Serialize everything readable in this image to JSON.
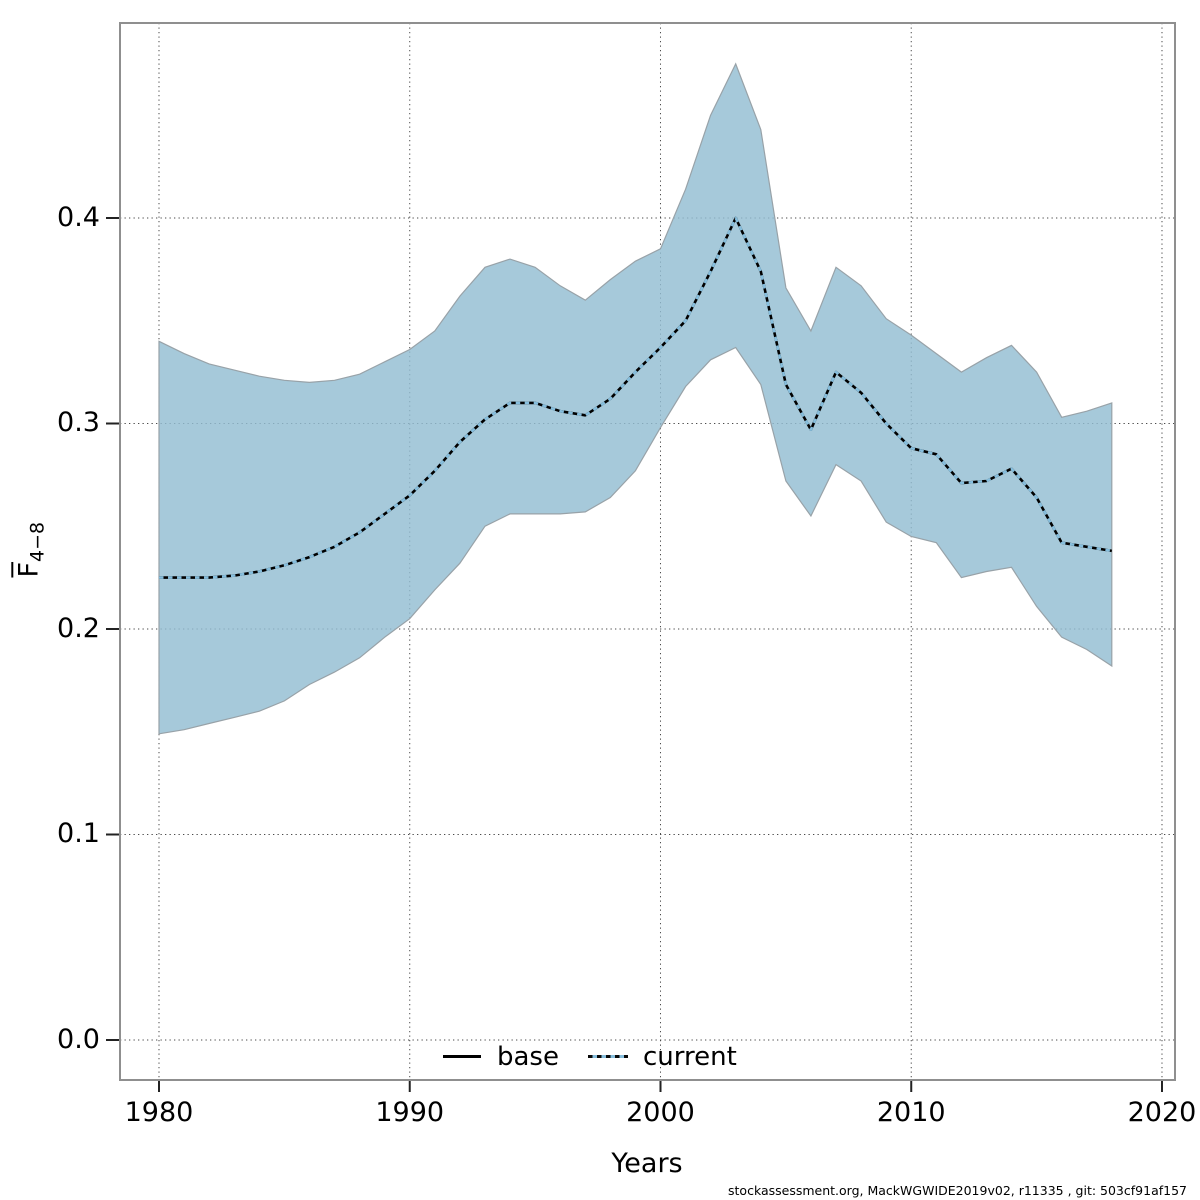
{
  "page": {
    "background": "#ffffff"
  },
  "footer": {
    "text": "stockassessment.org, MackWGWIDE2019v02, r11335 , git: 503cf91af157"
  },
  "chart_data": {
    "type": "line",
    "title": "",
    "xlabel": "Years",
    "ylabel": {
      "letter": "F",
      "subscript": "4−8",
      "overline": true
    },
    "x_ticks": [
      "1980",
      "1990",
      "2000",
      "2010",
      "2020"
    ],
    "y_ticks": [
      "0.0",
      "0.1",
      "0.2",
      "0.3",
      "0.4"
    ],
    "xlim": [
      1978.445,
      2020.519
    ],
    "ylim": [
      -0.01947,
      0.49489
    ],
    "grid": "dotted",
    "legend_position": "bottom-center-inside",
    "x": [
      1980,
      1981,
      1982,
      1983,
      1984,
      1985,
      1986,
      1987,
      1988,
      1989,
      1990,
      1991,
      1992,
      1993,
      1994,
      1995,
      1996,
      1997,
      1998,
      1999,
      2000,
      2001,
      2002,
      2003,
      2004,
      2005,
      2006,
      2007,
      2008,
      2009,
      2010,
      2011,
      2012,
      2013,
      2014,
      2015,
      2016,
      2017,
      2018
    ],
    "series": [
      {
        "name": "base",
        "color": "#000000",
        "line_style": "solid",
        "values": [
          0.225,
          0.225,
          0.225,
          0.226,
          0.228,
          0.231,
          0.235,
          0.24,
          0.247,
          0.256,
          0.265,
          0.277,
          0.291,
          0.302,
          0.31,
          0.31,
          0.306,
          0.304,
          0.312,
          0.325,
          0.337,
          0.35,
          0.374,
          0.4,
          0.374,
          0.319,
          0.297,
          0.325,
          0.315,
          0.3,
          0.288,
          0.285,
          0.271,
          0.272,
          0.278,
          0.264,
          0.242,
          0.24,
          0.238
        ]
      },
      {
        "name": "current",
        "color": "#86bedd",
        "line_style": "dotted",
        "values": [
          0.225,
          0.225,
          0.225,
          0.226,
          0.228,
          0.231,
          0.235,
          0.24,
          0.247,
          0.256,
          0.265,
          0.277,
          0.291,
          0.302,
          0.31,
          0.31,
          0.306,
          0.304,
          0.312,
          0.325,
          0.337,
          0.35,
          0.374,
          0.4,
          0.374,
          0.319,
          0.297,
          0.325,
          0.315,
          0.3,
          0.288,
          0.285,
          0.271,
          0.272,
          0.278,
          0.264,
          0.242,
          0.24,
          0.238
        ]
      }
    ],
    "ribbon": {
      "for": "current",
      "fill": "#92bdd2",
      "fill_opacity": 0.82,
      "edge": "#98a2a8",
      "low": [
        0.149,
        0.151,
        0.154,
        0.157,
        0.16,
        0.165,
        0.173,
        0.179,
        0.186,
        0.196,
        0.205,
        0.219,
        0.232,
        0.25,
        0.256,
        0.256,
        0.256,
        0.257,
        0.264,
        0.277,
        0.298,
        0.318,
        0.331,
        0.337,
        0.319,
        0.272,
        0.255,
        0.28,
        0.272,
        0.252,
        0.245,
        0.242,
        0.225,
        0.228,
        0.23,
        0.211,
        0.196,
        0.19,
        0.182
      ],
      "high": [
        0.34,
        0.334,
        0.329,
        0.326,
        0.323,
        0.321,
        0.32,
        0.321,
        0.324,
        0.33,
        0.336,
        0.345,
        0.362,
        0.376,
        0.38,
        0.376,
        0.367,
        0.36,
        0.37,
        0.379,
        0.385,
        0.414,
        0.45,
        0.475,
        0.443,
        0.366,
        0.345,
        0.376,
        0.367,
        0.351,
        0.343,
        0.334,
        0.325,
        0.332,
        0.338,
        0.325,
        0.303,
        0.306,
        0.31
      ]
    },
    "frame_color": "#8f8f8f",
    "grid_color": "#4a4a4a",
    "tick_color": "#222222"
  }
}
